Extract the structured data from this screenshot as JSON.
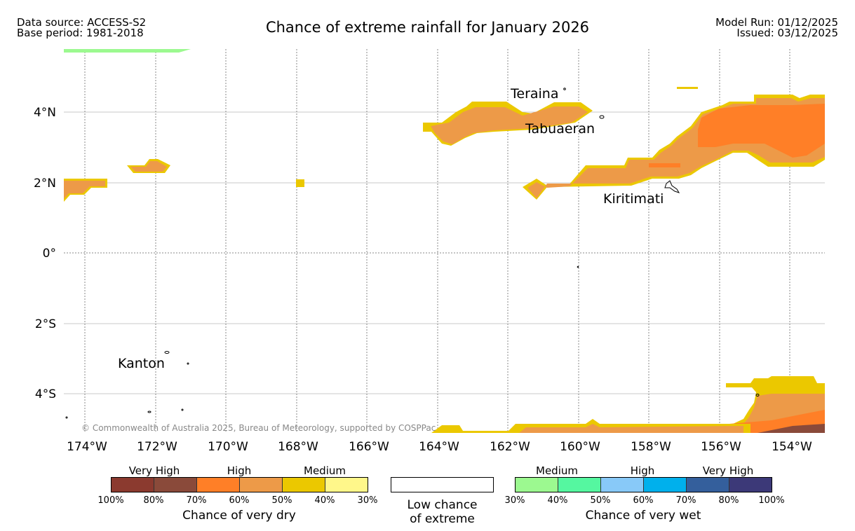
{
  "header": {
    "data_source": "Data source: ACCESS-S2",
    "base_period": "Base period: 1981-2018",
    "title": "Chance of extreme rainfall for January 2026",
    "model_run": "Model Run: 01/12/2025",
    "issued": "Issued: 03/12/2025"
  },
  "map": {
    "lat_labels": [
      "4°N",
      "2°N",
      "0°",
      "2°S",
      "4°S"
    ],
    "lon_labels": [
      "174°W",
      "172°W",
      "170°W",
      "168°W",
      "166°W",
      "164°W",
      "162°W",
      "160°W",
      "158°W",
      "156°W",
      "154°W"
    ],
    "places": [
      "Teraina",
      "Tabuaeran",
      "Kiritimati",
      "Kanton"
    ],
    "copyright": "© Commonwealth of Australia 2025, Bureau of Meteorology, supported by COSPPac"
  },
  "legend": {
    "dry": {
      "title": "Chance of very dry",
      "groups": [
        "Very High",
        "High",
        "Medium"
      ],
      "ticks": [
        "100%",
        "80%",
        "70%",
        "60%",
        "50%",
        "40%",
        "30%"
      ],
      "colors": [
        "#8b3a2f",
        "#8a4a3a",
        "#ff7f27",
        "#ed9a48",
        "#ebc800",
        "#fff78a"
      ]
    },
    "neutral": {
      "line1": "Low chance",
      "line2": "of extreme"
    },
    "wet": {
      "title": "Chance of very wet",
      "groups": [
        "Medium",
        "High",
        "Very High"
      ],
      "ticks": [
        "30%",
        "40%",
        "50%",
        "60%",
        "70%",
        "80%",
        "100%"
      ],
      "colors": [
        "#9cf990",
        "#55f7a0",
        "#88c9f8",
        "#00b0ec",
        "#345f9c",
        "#3c3978"
      ]
    }
  }
}
